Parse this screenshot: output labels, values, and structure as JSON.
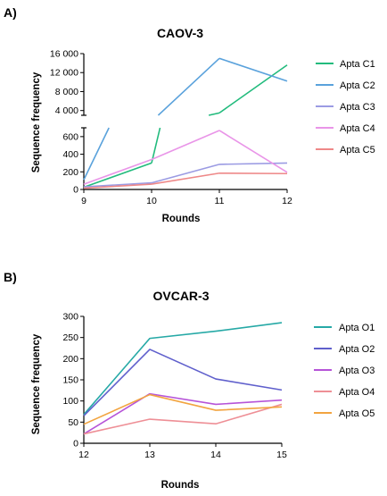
{
  "panels": [
    "A)",
    "B)"
  ],
  "chart_data": [
    {
      "type": "line",
      "title": "CAOV-3",
      "xlabel": "Rounds",
      "ylabel": "Sequence frequency",
      "x": [
        9,
        10,
        11,
        12
      ],
      "x_ticks": [
        "9",
        "10",
        "11",
        "12"
      ],
      "y_scale": "broken",
      "y_break": [
        700,
        3000
      ],
      "ylim_lower": [
        0,
        700
      ],
      "ylim_upper": [
        3000,
        16000
      ],
      "y_ticks_lower": [
        "0",
        "200",
        "400",
        "600"
      ],
      "y_ticks_upper": [
        "4 000",
        "8 000",
        "12 000",
        "16 000"
      ],
      "legend_position": "right",
      "grid": false,
      "series": [
        {
          "name": "Apta C1",
          "color": "#22bb7d",
          "values": [
            25,
            300,
            3500,
            13600
          ]
        },
        {
          "name": "Apta C2",
          "color": "#5aa2dc",
          "values": [
            110,
            1700,
            15000,
            10200
          ]
        },
        {
          "name": "Apta C3",
          "color": "#9b9be3",
          "values": [
            30,
            75,
            285,
            300
          ]
        },
        {
          "name": "Apta C4",
          "color": "#e995e8",
          "values": [
            60,
            340,
            670,
            195
          ]
        },
        {
          "name": "Apta C5",
          "color": "#ee8888",
          "values": [
            15,
            60,
            185,
            180
          ]
        }
      ]
    },
    {
      "type": "line",
      "title": "OVCAR-3",
      "xlabel": "Rounds",
      "ylabel": "Sequence frequency",
      "x": [
        12,
        13,
        14,
        15
      ],
      "x_ticks": [
        "12",
        "13",
        "14",
        "15"
      ],
      "ylim": [
        0,
        300
      ],
      "y_ticks": [
        "0",
        "50",
        "100",
        "150",
        "200",
        "250",
        "300"
      ],
      "legend_position": "right",
      "grid": false,
      "series": [
        {
          "name": "Apta O1",
          "color": "#26a9a6",
          "values": [
            68,
            248,
            265,
            285
          ]
        },
        {
          "name": "Apta O2",
          "color": "#5f5fcc",
          "values": [
            65,
            222,
            152,
            126
          ]
        },
        {
          "name": "Apta O3",
          "color": "#b654d8",
          "values": [
            22,
            117,
            92,
            102
          ]
        },
        {
          "name": "Apta O4",
          "color": "#ee8f96",
          "values": [
            22,
            57,
            46,
            92
          ]
        },
        {
          "name": "Apta O5",
          "color": "#f2a440",
          "values": [
            45,
            115,
            78,
            86
          ]
        }
      ]
    }
  ]
}
